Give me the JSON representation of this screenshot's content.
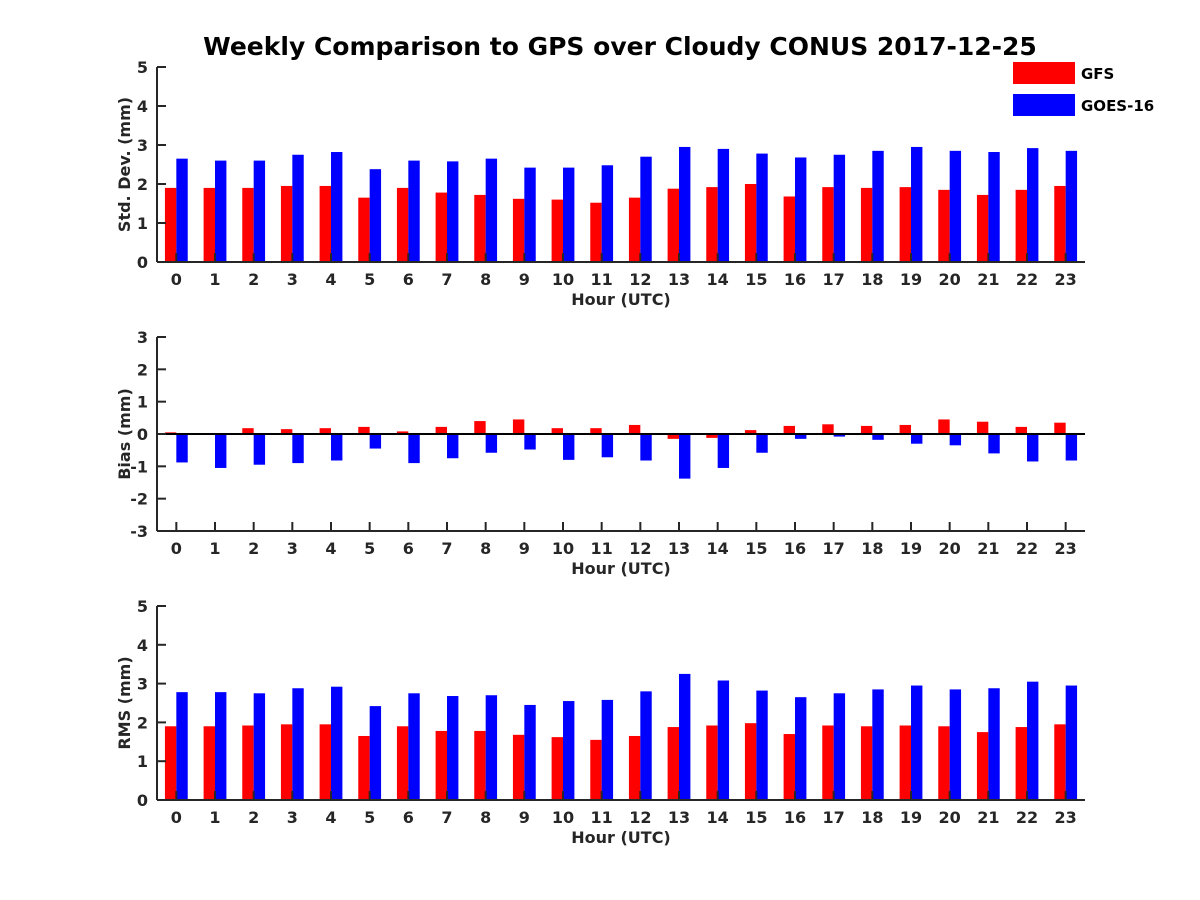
{
  "title": "Weekly Comparison to GPS over Cloudy CONUS 2017-12-25",
  "legend": {
    "placement": "top-right",
    "entries": [
      {
        "name": "GFS",
        "color": "#ff0000"
      },
      {
        "name": "GOES-16",
        "color": "#0000ff"
      }
    ]
  },
  "chart_data": [
    {
      "type": "bar",
      "xlabel": "Hour (UTC)",
      "ylabel": "Std. Dev. (mm)",
      "ylim": [
        0,
        5
      ],
      "yticks": [
        "0",
        "1",
        "2",
        "3",
        "4",
        "5"
      ],
      "categories": [
        "0",
        "1",
        "2",
        "3",
        "4",
        "5",
        "6",
        "7",
        "8",
        "9",
        "10",
        "11",
        "12",
        "13",
        "14",
        "15",
        "16",
        "17",
        "18",
        "19",
        "20",
        "21",
        "22",
        "23"
      ],
      "series": [
        {
          "name": "GFS",
          "color": "#ff0000",
          "values": [
            1.9,
            1.9,
            1.9,
            1.95,
            1.95,
            1.65,
            1.9,
            1.78,
            1.72,
            1.62,
            1.6,
            1.52,
            1.65,
            1.88,
            1.92,
            2.0,
            1.68,
            1.92,
            1.9,
            1.92,
            1.85,
            1.72,
            1.85,
            1.95
          ]
        },
        {
          "name": "GOES-16",
          "color": "#0000ff",
          "values": [
            2.65,
            2.6,
            2.6,
            2.75,
            2.82,
            2.38,
            2.6,
            2.58,
            2.65,
            2.42,
            2.42,
            2.48,
            2.7,
            2.95,
            2.9,
            2.78,
            2.68,
            2.75,
            2.85,
            2.95,
            2.85,
            2.82,
            2.92,
            2.85
          ]
        }
      ]
    },
    {
      "type": "bar",
      "xlabel": "Hour (UTC)",
      "ylabel": "Bias (mm)",
      "ylim": [
        -3,
        3
      ],
      "yticks": [
        "-3",
        "-2",
        "-1",
        "0",
        "1",
        "2",
        "3"
      ],
      "categories": [
        "0",
        "1",
        "2",
        "3",
        "4",
        "5",
        "6",
        "7",
        "8",
        "9",
        "10",
        "11",
        "12",
        "13",
        "14",
        "15",
        "16",
        "17",
        "18",
        "19",
        "20",
        "21",
        "22",
        "23"
      ],
      "series": [
        {
          "name": "GFS",
          "color": "#ff0000",
          "values": [
            0.05,
            0.02,
            0.18,
            0.15,
            0.18,
            0.22,
            0.08,
            0.22,
            0.4,
            0.45,
            0.18,
            0.18,
            0.28,
            -0.15,
            -0.12,
            0.12,
            0.25,
            0.3,
            0.25,
            0.28,
            0.45,
            0.38,
            0.22,
            0.35
          ]
        },
        {
          "name": "GOES-16",
          "color": "#0000ff",
          "values": [
            -0.88,
            -1.05,
            -0.95,
            -0.9,
            -0.82,
            -0.45,
            -0.9,
            -0.75,
            -0.58,
            -0.48,
            -0.8,
            -0.72,
            -0.82,
            -1.38,
            -1.05,
            -0.58,
            -0.15,
            -0.08,
            -0.18,
            -0.3,
            -0.35,
            -0.6,
            -0.85,
            -0.82
          ]
        }
      ]
    },
    {
      "type": "bar",
      "xlabel": "Hour (UTC)",
      "ylabel": "RMS (mm)",
      "ylim": [
        0,
        5
      ],
      "yticks": [
        "0",
        "1",
        "2",
        "3",
        "4",
        "5"
      ],
      "categories": [
        "0",
        "1",
        "2",
        "3",
        "4",
        "5",
        "6",
        "7",
        "8",
        "9",
        "10",
        "11",
        "12",
        "13",
        "14",
        "15",
        "16",
        "17",
        "18",
        "19",
        "20",
        "21",
        "22",
        "23"
      ],
      "series": [
        {
          "name": "GFS",
          "color": "#ff0000",
          "values": [
            1.9,
            1.9,
            1.92,
            1.95,
            1.95,
            1.65,
            1.9,
            1.78,
            1.78,
            1.68,
            1.62,
            1.55,
            1.65,
            1.88,
            1.92,
            1.98,
            1.7,
            1.92,
            1.9,
            1.92,
            1.9,
            1.75,
            1.88,
            1.95
          ]
        },
        {
          "name": "GOES-16",
          "color": "#0000ff",
          "values": [
            2.78,
            2.78,
            2.75,
            2.88,
            2.92,
            2.42,
            2.75,
            2.68,
            2.7,
            2.45,
            2.55,
            2.58,
            2.8,
            3.25,
            3.08,
            2.82,
            2.65,
            2.75,
            2.85,
            2.95,
            2.85,
            2.88,
            3.05,
            2.95
          ]
        }
      ]
    }
  ]
}
